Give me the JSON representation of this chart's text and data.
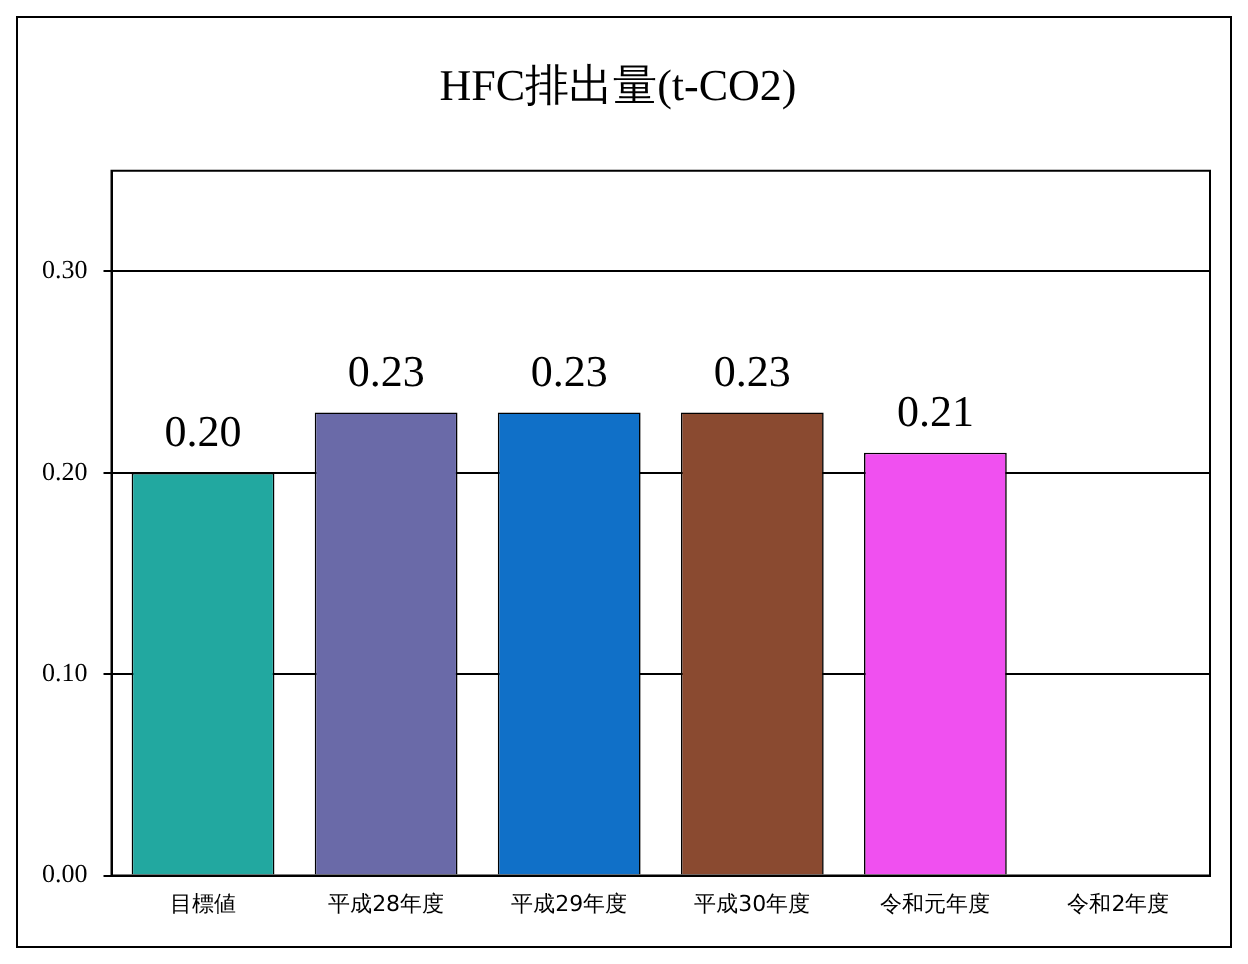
{
  "chart_data": {
    "type": "bar",
    "title": "HFC排出量(t-CO2)",
    "categories": [
      "目標値",
      "平成28年度",
      "平成29年度",
      "平成30年度",
      "令和元年度",
      "令和2年度"
    ],
    "values": [
      0.2,
      0.23,
      0.23,
      0.23,
      0.21,
      null
    ],
    "colors": [
      "#22a8a0",
      "#6a6aa8",
      "#1070c8",
      "#8a4a30",
      "#f050f0",
      "#888888"
    ],
    "value_labels": [
      "0.20",
      "0.23",
      "0.23",
      "0.23",
      "0.21",
      null
    ],
    "ylim": [
      0,
      0.35
    ],
    "yticks": [
      {
        "value": 0,
        "label": "0.00"
      },
      {
        "value": 0.1,
        "label": "0.10"
      },
      {
        "value": 0.2,
        "label": "0.20"
      },
      {
        "value": 0.3,
        "label": "0.30"
      }
    ],
    "grid": "y",
    "legend": false
  }
}
